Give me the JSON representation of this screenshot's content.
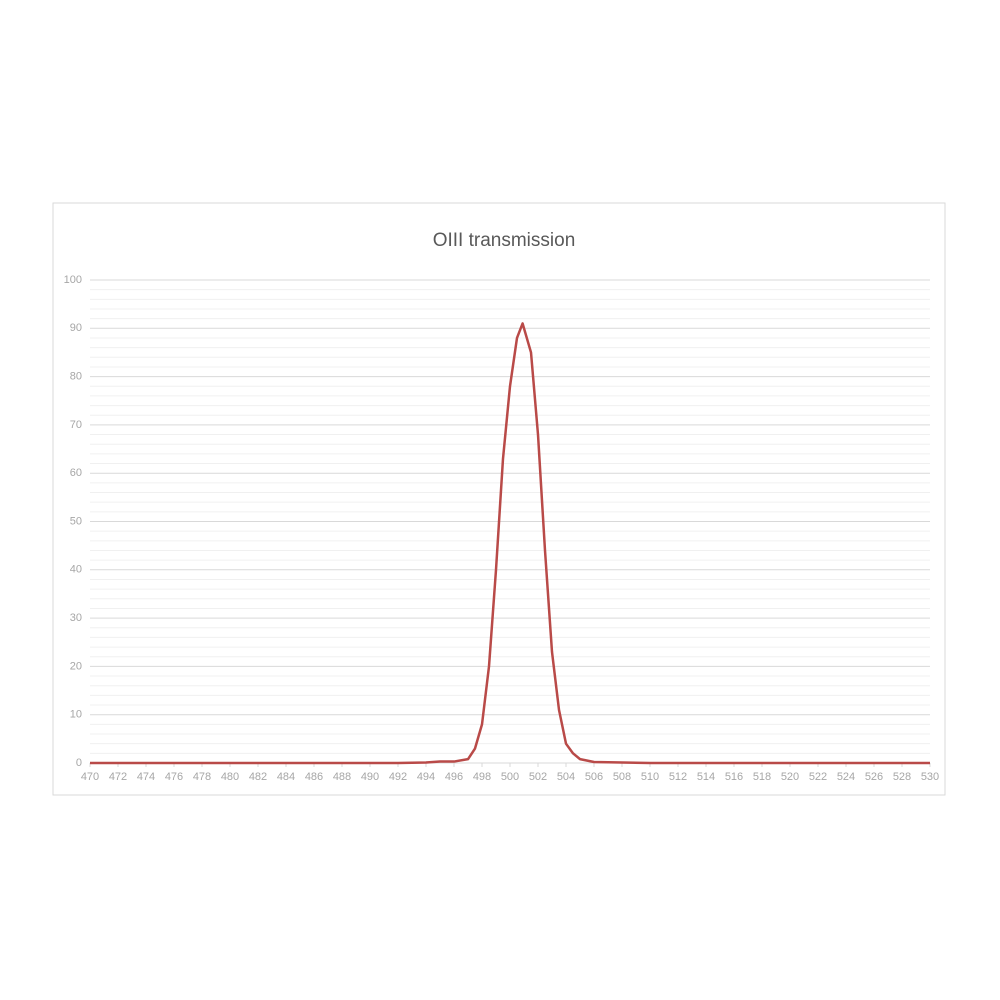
{
  "chart_data": {
    "type": "line",
    "title": "OIII transmission",
    "x": [
      470,
      475,
      480,
      485,
      490,
      492,
      494,
      495,
      496,
      497,
      497.5,
      498,
      498.5,
      499,
      499.5,
      500,
      500.5,
      500.9,
      501.5,
      502,
      502.5,
      503,
      503.5,
      504,
      504.5,
      505,
      506,
      508,
      510,
      515,
      520,
      525,
      530
    ],
    "series": [
      {
        "color": "#b94a48",
        "values": [
          0,
          0,
          0,
          0,
          0,
          0,
          0.1,
          0.3,
          0.3,
          0.8,
          3,
          8,
          20,
          40,
          63,
          78,
          88,
          91,
          85,
          68,
          44,
          23,
          11,
          4,
          2,
          0.8,
          0.2,
          0.1,
          0,
          0,
          0,
          0,
          0
        ]
      }
    ],
    "xlim": [
      470,
      530
    ],
    "xticks": [
      470,
      472,
      474,
      476,
      478,
      480,
      482,
      484,
      486,
      488,
      490,
      492,
      494,
      496,
      498,
      500,
      502,
      504,
      506,
      508,
      510,
      512,
      514,
      516,
      518,
      520,
      522,
      524,
      526,
      528,
      530
    ],
    "ylim": [
      0,
      100
    ],
    "yticks": [
      0,
      10,
      20,
      30,
      40,
      50,
      60,
      70,
      80,
      90,
      100
    ],
    "yminorticks": [
      2,
      4,
      6,
      8,
      12,
      14,
      16,
      18,
      22,
      24,
      26,
      28,
      32,
      34,
      36,
      38,
      42,
      44,
      46,
      48,
      52,
      54,
      56,
      58,
      62,
      64,
      66,
      68,
      72,
      74,
      76,
      78,
      82,
      84,
      86,
      88,
      92,
      94,
      96,
      98
    ],
    "grid": true
  }
}
